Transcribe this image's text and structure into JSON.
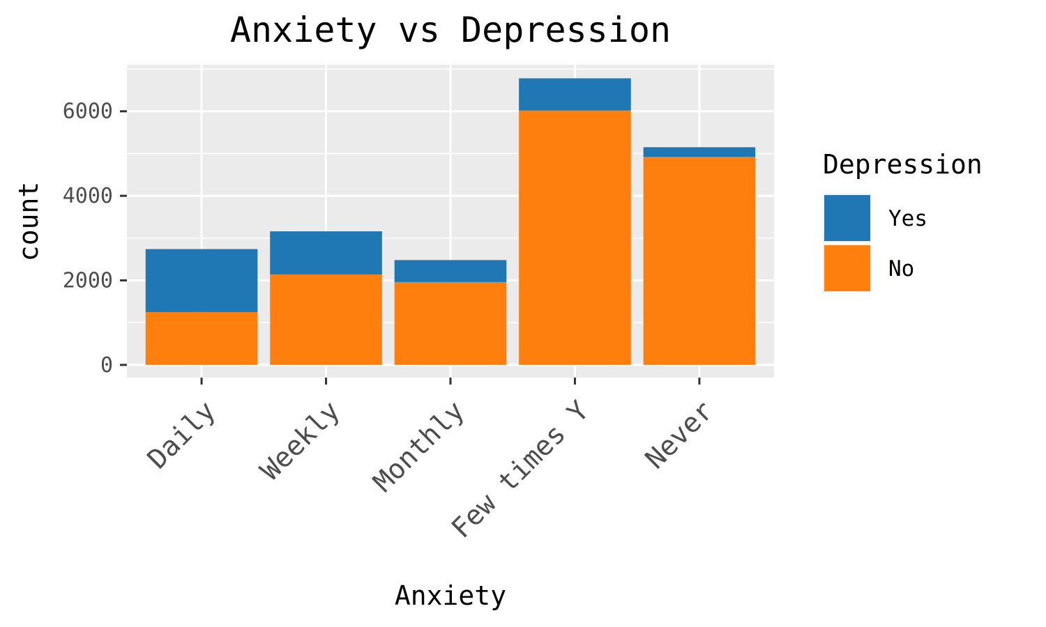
{
  "chart_data": {
    "type": "bar",
    "stacked": true,
    "title": "Anxiety vs Depression",
    "xlabel": "Anxiety",
    "ylabel": "count",
    "categories": [
      "Daily",
      "Weekly",
      "Monthly",
      "Few times Y",
      "Never"
    ],
    "series": [
      {
        "name": "No",
        "color": "#ff7f0e",
        "values": [
          1250,
          2140,
          1960,
          6020,
          4920
        ]
      },
      {
        "name": "Yes",
        "color": "#1f77b4",
        "values": [
          1490,
          1020,
          520,
          760,
          230
        ]
      }
    ],
    "ylim": [
      -300,
      7100
    ],
    "yticks": [
      "0",
      "2000",
      "4000",
      "6000"
    ],
    "legend": {
      "title": "Depression",
      "position": "right",
      "order": [
        "Yes",
        "No"
      ]
    },
    "grid": true,
    "panel_background": "#ebebeb",
    "grid_color": "#ffffff"
  }
}
